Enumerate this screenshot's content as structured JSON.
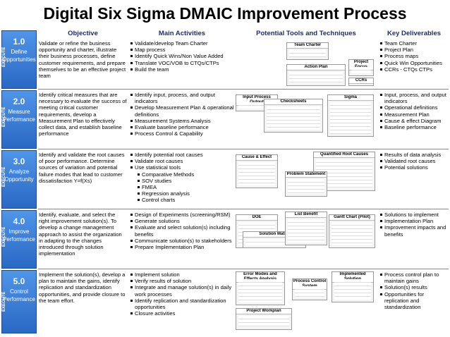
{
  "header": {
    "title": "Digital Six Sigma DMAIC Improvement Process"
  },
  "columns": [
    "Objective",
    "Main Activities",
    "Potential Tools and Techniques",
    "Key Deliverables"
  ],
  "phases": [
    {
      "number": "1.0",
      "name": "Define Opportunities",
      "tag": "EXECUTE",
      "objective": "Validate or refine the business opportunity and charter, illustrate their business processes, define customer requirements, and prepare themselves to be an effective project team",
      "activities": [
        {
          "text": "Validate/develop Team Charter"
        },
        {
          "text": "Map process"
        },
        {
          "text": "Identify Quick Wins/Non Value Added"
        },
        {
          "text": "Translate VOC/VOB to CTQs/CTPs"
        },
        {
          "text": "Build the team"
        }
      ],
      "tools": [
        "Team Charter",
        "Action Plan",
        "Project Focus",
        "CCRs"
      ],
      "deliverables": [
        "Team Charter",
        "Project Plan",
        "Process maps",
        "Quick Win Opportunities",
        "CCRs  - CTQs CTPs"
      ]
    },
    {
      "number": "2.0",
      "name": "Measure Performance",
      "tag": "EXECUTE",
      "objective": "Identify critical measures that are necessary to evaluate the success of meeting critical customer requirements, develop a Measurement Plan to effectively collect data, and establish baseline performance",
      "activities": [
        {
          "text": "Identify input, process, and output indicators"
        },
        {
          "text": "Develop Measurement Plan & operational definitions"
        },
        {
          "text": "Measurement Systems Analysis"
        },
        {
          "text": "Evaluate baseline performance"
        },
        {
          "text": "Process Control & Capability"
        }
      ],
      "tools": [
        "Input Process Output",
        "Checksheets",
        "Sigma"
      ],
      "deliverables": [
        "Input, process, and output indicators",
        "Operational definitions",
        "Measurement Plan",
        "Cause & effect Diagram",
        "Baseline performance"
      ]
    },
    {
      "number": "3.0",
      "name": "Analyze Opportunity",
      "tag": "EXECUTE",
      "objective": "Identify and validate the root causes of poor performance. Determine sources of variation and potential failure modes that lead to customer dissatisfaction   Y=f(Xs)",
      "activities": [
        {
          "text": "Identify potential root causes"
        },
        {
          "text": "Validate root causes"
        },
        {
          "text": "Use statistical tools"
        },
        {
          "text": "Comparative Methods",
          "indent": 1
        },
        {
          "text": "SOV studies",
          "indent": 1
        },
        {
          "text": "FMEA",
          "indent": 1
        },
        {
          "text": "Regression analysis",
          "indent": 1
        },
        {
          "text": "Control charts",
          "indent": 1
        }
      ],
      "tools": [
        "Cause & Effect",
        "Quantified Root Causes",
        "Problem Statement"
      ],
      "deliverables": [
        "Results of data analysis",
        "Validated root causes",
        "Potential solutions"
      ]
    },
    {
      "number": "4.0",
      "name": "Improve Performance",
      "tag": "EXECUTE",
      "objective": "Identify, evaluate, and select the right improvement solution(s). To develop a change management approach to assist the organization in adapting to the changes introduced through solution implementation",
      "activities": [
        {
          "text": "Design of Experiments (screening/RSM)"
        },
        {
          "text": "Generate solutions"
        },
        {
          "text": "Evaluate and select solution(s) including benefits"
        },
        {
          "text": "Communicate solution(s) to stakeholders"
        },
        {
          "text": "Prepare Implementation Plan"
        }
      ],
      "tools": [
        "DOE",
        "Solution Matrix",
        "List Benefit",
        "Gantt Chart (Pilot)"
      ],
      "deliverables": [
        "Solutions to implement",
        "Implementation Plan",
        "Improvement impacts and benefits"
      ]
    },
    {
      "number": "5.0",
      "name": "Control Performance",
      "tag": "EXECUTE",
      "objective": "Implement the solution(s), develop a plan to maintain the gains, identify replication and standardization opportunities, and provide closure to the team effort.",
      "activities": [
        {
          "text": "Implement solution"
        },
        {
          "text": "Verify results of solution"
        },
        {
          "text": "Integrate and manage solution(s) in daily work processes"
        },
        {
          "text": "Identify replication and standardization opportunities"
        },
        {
          "text": "Closure activities"
        }
      ],
      "tools": [
        "Error Modes and Effects Analysis",
        "Process Control System",
        "Implemented Solution",
        "Project Workplan"
      ],
      "deliverables": [
        "Process control plan to maintain gains",
        "Solution(s) results",
        "Opportunities for replication and standardization"
      ]
    }
  ]
}
